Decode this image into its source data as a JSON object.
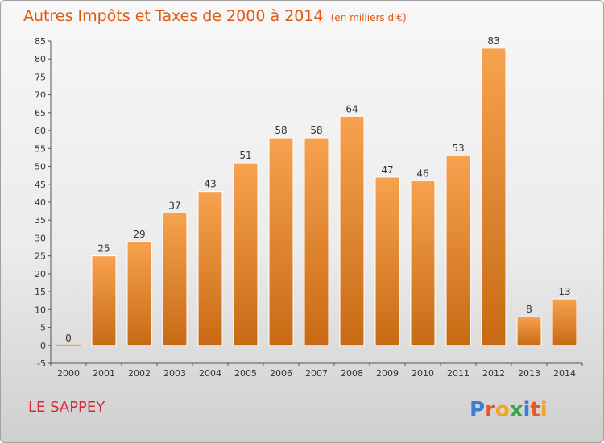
{
  "header": {
    "title": "Autres Impôts et Taxes de 2000 à 2014",
    "unit_note": "(en milliers d'€)"
  },
  "commune": "LE SAPPEY",
  "logo_text": "Proxiti",
  "colors": {
    "title": "#e05a10",
    "commune": "#d8283a",
    "bar_top": "#f7a24f",
    "bar_bottom": "#c86a14"
  },
  "chart_data": {
    "type": "bar",
    "title": "Autres Impôts et Taxes de 2000 à 2014",
    "subtitle": "(en milliers d'€)",
    "xlabel": "",
    "ylabel": "",
    "categories": [
      "2000",
      "2001",
      "2002",
      "2003",
      "2004",
      "2005",
      "2006",
      "2007",
      "2008",
      "2009",
      "2010",
      "2011",
      "2012",
      "2013",
      "2014"
    ],
    "values": [
      0,
      25,
      29,
      37,
      43,
      51,
      58,
      58,
      64,
      47,
      46,
      53,
      83,
      8,
      13
    ],
    "ylim": [
      -5,
      85
    ],
    "yticks": [
      -5,
      0,
      5,
      10,
      15,
      20,
      25,
      30,
      35,
      40,
      45,
      50,
      55,
      60,
      65,
      70,
      75,
      80,
      85
    ],
    "grid": false,
    "legend": "none"
  }
}
